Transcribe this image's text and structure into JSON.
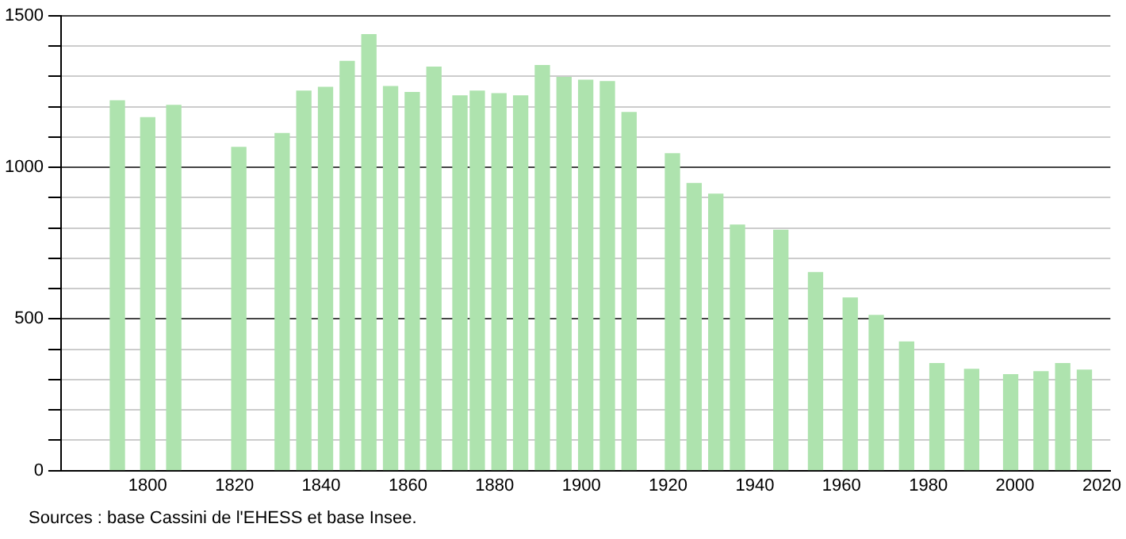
{
  "chart_data": {
    "type": "bar",
    "x": [
      1793,
      1800,
      1806,
      1821,
      1831,
      1836,
      1841,
      1846,
      1851,
      1856,
      1861,
      1866,
      1872,
      1876,
      1881,
      1886,
      1891,
      1896,
      1901,
      1906,
      1911,
      1921,
      1926,
      1931,
      1936,
      1946,
      1954,
      1962,
      1968,
      1975,
      1982,
      1990,
      1999,
      2006,
      2011,
      2016
    ],
    "values": [
      1220,
      1164,
      1205,
      1066,
      1112,
      1252,
      1264,
      1350,
      1438,
      1267,
      1247,
      1331,
      1236,
      1252,
      1243,
      1236,
      1336,
      1297,
      1288,
      1283,
      1181,
      1045,
      947,
      912,
      810,
      793,
      653,
      569,
      512,
      424,
      353,
      334,
      316,
      326,
      353,
      331
    ],
    "color": "#aee3ae",
    "xlim": [
      1780,
      2022
    ],
    "xticks": [
      1800,
      1820,
      1840,
      1860,
      1880,
      1900,
      1920,
      1940,
      1960,
      1980,
      2000,
      2020
    ],
    "ylim": [
      0,
      1500
    ],
    "yticks": [
      0,
      {
        "value": 100,
        "label": null
      },
      {
        "value": 200,
        "label": null
      },
      {
        "value": 300,
        "label": null
      },
      {
        "value": 400,
        "label": null
      },
      500,
      {
        "value": 600,
        "label": null
      },
      {
        "value": 700,
        "label": null
      },
      {
        "value": 800,
        "label": null
      },
      {
        "value": 900,
        "label": null
      },
      1000,
      {
        "value": 1100,
        "label": null
      },
      {
        "value": 1200,
        "label": null
      },
      {
        "value": 1300,
        "label": null
      },
      {
        "value": 1400,
        "label": null
      },
      1500
    ],
    "grid": "y",
    "legend": false,
    "annotations": [
      "Sources : base Cassini de l'EHESS et base Insee."
    ]
  }
}
